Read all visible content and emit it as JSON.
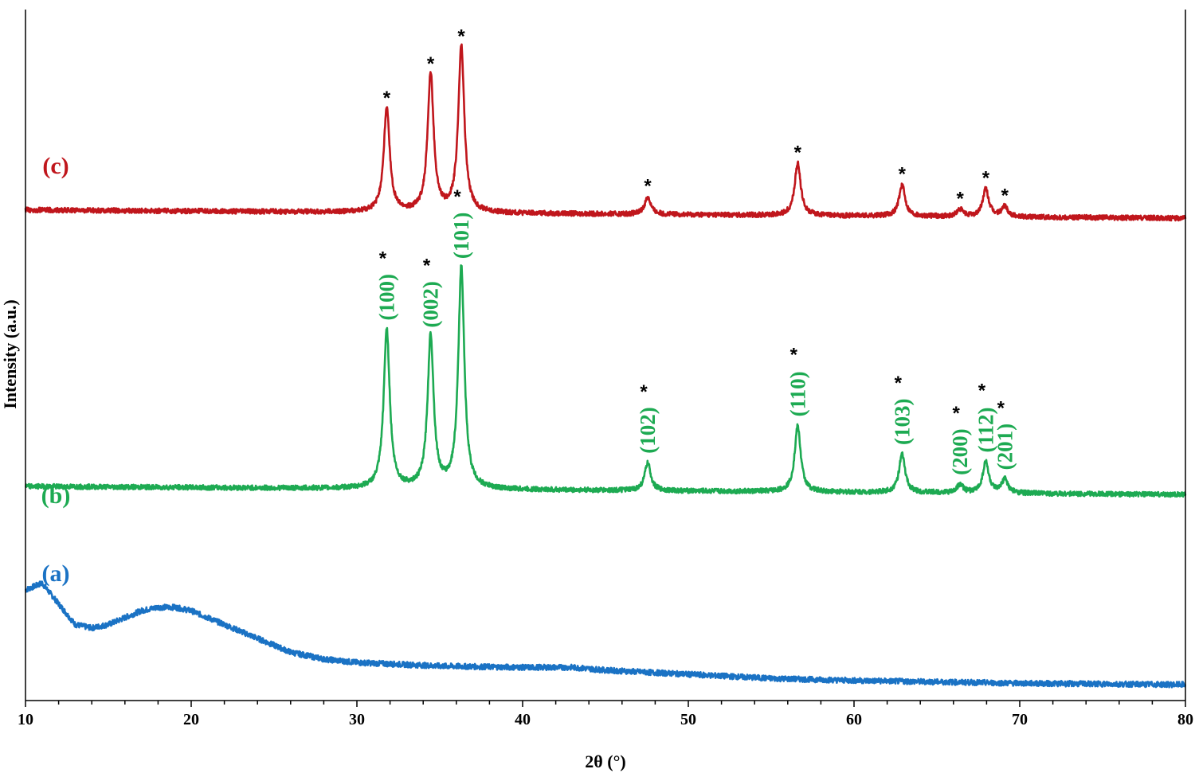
{
  "chart_data": {
    "type": "line",
    "xlabel": "2θ (°)",
    "ylabel": "Intensity (a.u.)",
    "xlim": [
      10,
      80
    ],
    "xticks": [
      10,
      20,
      30,
      40,
      50,
      60,
      70,
      80
    ],
    "grid": false,
    "series": [
      {
        "name": "(a)",
        "color": "#1a72c4",
        "baseline": 0.02,
        "points": [
          [
            10,
            0.14
          ],
          [
            11,
            0.15
          ],
          [
            12,
            0.12
          ],
          [
            13,
            0.09
          ],
          [
            14,
            0.085
          ],
          [
            15,
            0.09
          ],
          [
            16,
            0.1
          ],
          [
            17,
            0.11
          ],
          [
            18,
            0.115
          ],
          [
            19,
            0.115
          ],
          [
            20,
            0.11
          ],
          [
            21,
            0.1
          ],
          [
            22,
            0.09
          ],
          [
            23,
            0.08
          ],
          [
            24,
            0.07
          ],
          [
            25,
            0.06
          ],
          [
            26,
            0.05
          ],
          [
            27,
            0.045
          ],
          [
            28,
            0.04
          ],
          [
            30,
            0.035
          ],
          [
            35,
            0.03
          ],
          [
            40,
            0.028
          ],
          [
            43,
            0.028
          ],
          [
            45,
            0.024
          ],
          [
            50,
            0.018
          ],
          [
            55,
            0.012
          ],
          [
            60,
            0.009
          ],
          [
            65,
            0.007
          ],
          [
            70,
            0.005
          ],
          [
            75,
            0.004
          ],
          [
            80,
            0.003
          ]
        ]
      },
      {
        "name": "(b)",
        "color": "#1daa52",
        "baseline": 0.31,
        "peaks": [
          {
            "x": 31.8,
            "y": 0.23,
            "label": "(100)"
          },
          {
            "x": 34.45,
            "y": 0.22,
            "label": "(002)"
          },
          {
            "x": 36.3,
            "y": 0.32,
            "label": "(101)"
          },
          {
            "x": 47.55,
            "y": 0.04,
            "label": "(102)"
          },
          {
            "x": 56.6,
            "y": 0.095,
            "label": "(110)"
          },
          {
            "x": 62.9,
            "y": 0.055,
            "label": "(103)"
          },
          {
            "x": 66.4,
            "y": 0.012,
            "label": "(200)"
          },
          {
            "x": 67.95,
            "y": 0.045,
            "label": "(112)"
          },
          {
            "x": 69.1,
            "y": 0.02,
            "label": "(201)"
          }
        ]
      },
      {
        "name": "(c)",
        "color": "#c0161c",
        "baseline": 0.71,
        "peaks": [
          {
            "x": 31.8,
            "y": 0.15
          },
          {
            "x": 34.45,
            "y": 0.2
          },
          {
            "x": 36.3,
            "y": 0.24
          },
          {
            "x": 47.55,
            "y": 0.025
          },
          {
            "x": 56.6,
            "y": 0.075
          },
          {
            "x": 62.9,
            "y": 0.045
          },
          {
            "x": 66.4,
            "y": 0.01
          },
          {
            "x": 67.95,
            "y": 0.04
          },
          {
            "x": 69.1,
            "y": 0.015
          }
        ]
      }
    ],
    "annotations": {
      "peak_marker": "*"
    }
  }
}
